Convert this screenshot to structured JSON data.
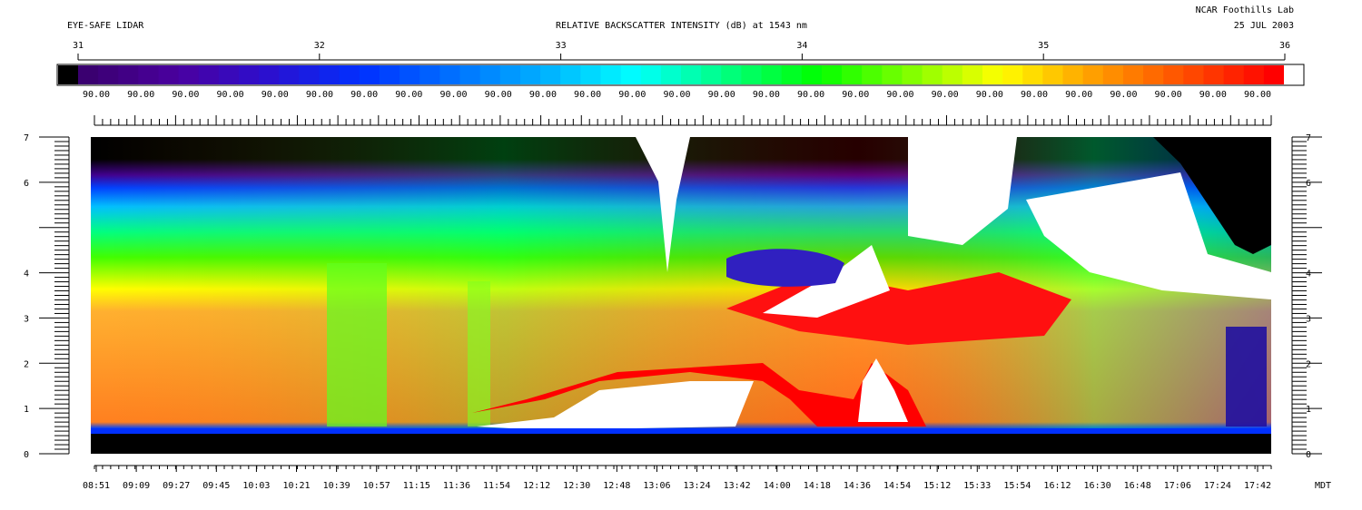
{
  "header": {
    "instrument": "EYE-SAFE LIDAR",
    "title": "RELATIVE BACKSCATTER INTENSITY (dB) at 1543 nm",
    "lab": "NCAR Foothills Lab",
    "date": "25 JUL 2003"
  },
  "chart_data": {
    "type": "heatmap",
    "title": "RELATIVE BACKSCATTER INTENSITY (dB) at 1543 nm",
    "colorbar": {
      "scale_ticks": [
        31,
        32,
        33,
        34,
        35,
        36
      ],
      "range": [
        31,
        36
      ],
      "labels": [
        "90.00",
        "90.00",
        "90.00",
        "90.00",
        "90.00",
        "90.00",
        "90.00",
        "90.00",
        "90.00",
        "90.00",
        "90.00",
        "90.00",
        "90.00",
        "90.00",
        "90.00",
        "90.00",
        "90.00",
        "90.00",
        "90.00",
        "90.00",
        "90.00",
        "90.00",
        "90.00",
        "90.00",
        "90.00",
        "90.00",
        "90.00"
      ],
      "colors": [
        "#000000",
        "#3a0070",
        "#4a00a0",
        "#2a10d0",
        "#0030ff",
        "#0070ff",
        "#00b0ff",
        "#00ffff",
        "#00ff80",
        "#00ff00",
        "#80ff00",
        "#ffff00",
        "#ffa000",
        "#ff5000",
        "#ff0000",
        "#ffffff"
      ]
    },
    "x": {
      "tick_labels": [
        "08:51",
        "09:09",
        "09:27",
        "09:45",
        "10:03",
        "10:21",
        "10:39",
        "10:57",
        "11:15",
        "11:36",
        "11:54",
        "12:12",
        "12:30",
        "12:48",
        "13:06",
        "13:24",
        "13:42",
        "14:00",
        "14:18",
        "14:36",
        "14:54",
        "15:12",
        "15:33",
        "15:54",
        "16:12",
        "16:30",
        "16:48",
        "17:06",
        "17:24",
        "17:42"
      ],
      "unit_label": "MDT"
    },
    "y": {
      "tick_labels": [
        0,
        1,
        2,
        3,
        4,
        6,
        7
      ],
      "range": [
        0,
        7
      ]
    },
    "grid": false,
    "features": {
      "surface_layer_km": 0.5,
      "boundary_layer_top_early_km": 3.7,
      "upper_aerosol_top_km": 6.0,
      "cloud_base_km": [
        0.7,
        1.2
      ]
    }
  }
}
